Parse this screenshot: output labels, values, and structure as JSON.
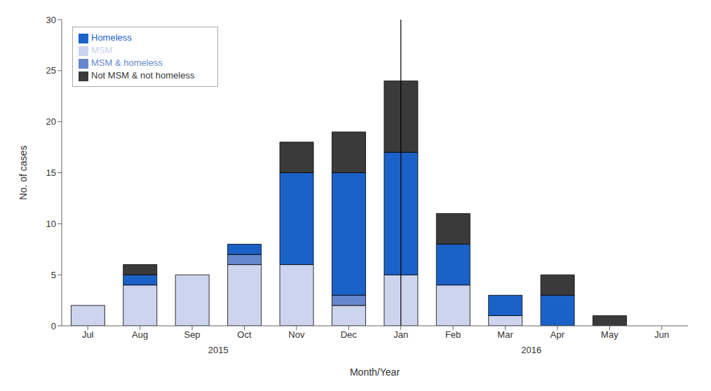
{
  "chart_data": {
    "type": "bar",
    "stacked": true,
    "categories": [
      "Jul",
      "Aug",
      "Sep",
      "Oct",
      "Nov",
      "Dec",
      "Jan",
      "Feb",
      "Mar",
      "Apr",
      "May",
      "Jun"
    ],
    "series": [
      {
        "name": "MSM",
        "color": "#ccd4ee",
        "values": [
          2,
          4,
          5,
          6,
          6,
          2,
          5,
          4,
          1,
          0,
          0,
          0
        ]
      },
      {
        "name": "MSM & homeless",
        "color": "#6688cc",
        "values": [
          0,
          0,
          0,
          1,
          0,
          1,
          0,
          0,
          0,
          0,
          0,
          0
        ]
      },
      {
        "name": "Homeless",
        "color": "#1a62c8",
        "values": [
          0,
          1,
          0,
          1,
          9,
          12,
          12,
          4,
          2,
          3,
          0,
          0
        ]
      },
      {
        "name": "Not MSM & not homeless",
        "color": "#3a3a3a",
        "values": [
          0,
          1,
          0,
          0,
          3,
          4,
          7,
          3,
          0,
          2,
          1,
          0
        ]
      }
    ],
    "x_label": "Month/Year",
    "y_label": "No. of cases",
    "ylim": [
      0,
      30
    ],
    "yticks": [
      0,
      5,
      10,
      15,
      20,
      25,
      30
    ],
    "annotations": [
      {
        "text": "2015",
        "categories": [
          "Jul",
          "Dec"
        ]
      },
      {
        "text": "2016",
        "categories": [
          "Jan",
          "Jun"
        ]
      }
    ],
    "grid": false,
    "legend": "upper left"
  }
}
